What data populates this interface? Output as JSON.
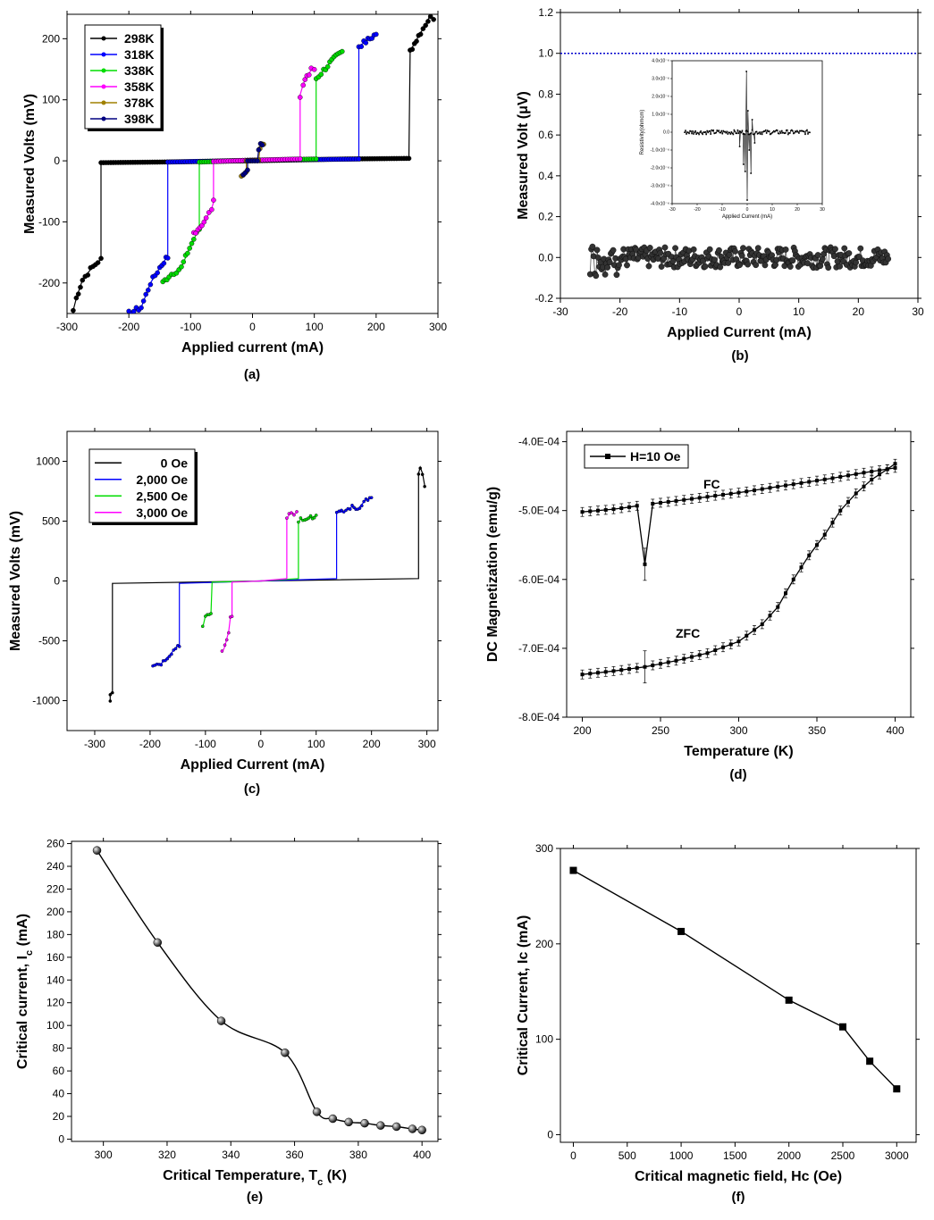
{
  "chart_data": [
    {
      "id": "a",
      "type": "line",
      "caption": "(a)",
      "xlabel": "Applied current (mA)",
      "ylabel": "Measured Volts (mV)",
      "xlim": [
        -300,
        300
      ],
      "ylim": [
        -250,
        240
      ],
      "xticks": [
        -300,
        -200,
        -100,
        0,
        100,
        200,
        300
      ],
      "yticks": [
        -200,
        -100,
        0,
        100,
        200
      ],
      "legend_position": "top-left",
      "series": [
        {
          "name": "298K",
          "color": "#000000",
          "points": [
            [
              -290,
              -245
            ],
            [
              -285,
              -225
            ],
            [
              -275,
              -195
            ],
            [
              -262,
              -178
            ],
            [
              -250,
              -165
            ],
            [
              -245,
              -162
            ],
            [
              -245,
              -3
            ],
            [
              -150,
              -2
            ],
            [
              0,
              0
            ],
            [
              150,
              3
            ],
            [
              253,
              4
            ],
            [
              255,
              180
            ],
            [
              262,
              192
            ],
            [
              272,
              210
            ],
            [
              280,
              222
            ],
            [
              288,
              240
            ],
            [
              293,
              228
            ]
          ]
        },
        {
          "name": "318K",
          "color": "#0000ff",
          "points": [
            [
              -200,
              -250
            ],
            [
              -180,
              -240
            ],
            [
              -165,
              -200
            ],
            [
              -150,
              -175
            ],
            [
              -140,
              -160
            ],
            [
              -137,
              -158
            ],
            [
              -137,
              -2
            ],
            [
              0,
              1
            ],
            [
              172,
              3
            ],
            [
              172,
              188
            ],
            [
              180,
              193
            ],
            [
              190,
              200
            ],
            [
              200,
              208
            ]
          ]
        },
        {
          "name": "338K",
          "color": "#00dd00",
          "points": [
            [
              -145,
              -200
            ],
            [
              -135,
              -188
            ],
            [
              -115,
              -175
            ],
            [
              -105,
              -150
            ],
            [
              -95,
              -128
            ],
            [
              -86,
              -112
            ],
            [
              -86,
              -2
            ],
            [
              0,
              1
            ],
            [
              103,
              3
            ],
            [
              103,
              135
            ],
            [
              115,
              148
            ],
            [
              125,
              160
            ],
            [
              135,
              170
            ],
            [
              145,
              178
            ]
          ]
        },
        {
          "name": "358K",
          "color": "#ff00ff",
          "points": [
            [
              -95,
              -118
            ],
            [
              -85,
              -108
            ],
            [
              -75,
              -95
            ],
            [
              -66,
              -78
            ],
            [
              -63,
              -68
            ],
            [
              -63,
              -1
            ],
            [
              0,
              1
            ],
            [
              77,
              3
            ],
            [
              77,
              108
            ],
            [
              82,
              125
            ],
            [
              88,
              140
            ],
            [
              95,
              148
            ],
            [
              100,
              150
            ]
          ]
        },
        {
          "name": "378K",
          "color": "#a08000",
          "points": [
            [
              -18,
              -28
            ],
            [
              -15,
              -24
            ],
            [
              -12,
              -20
            ],
            [
              -10,
              -18
            ],
            [
              -10,
              0
            ],
            [
              10,
              1
            ],
            [
              12,
              20
            ],
            [
              15,
              28
            ],
            [
              18,
              30
            ]
          ]
        },
        {
          "name": "398K",
          "color": "#000080",
          "points": [
            [
              -15,
              -25
            ],
            [
              -12,
              -20
            ],
            [
              -8,
              -15
            ],
            [
              -8,
              0
            ],
            [
              8,
              0
            ],
            [
              10,
              18
            ],
            [
              13,
              25
            ],
            [
              16,
              28
            ]
          ]
        }
      ]
    },
    {
      "id": "b",
      "type": "scatter",
      "caption": "(b)",
      "xlabel": "Applied Current (mA)",
      "ylabel": "Measured Volt (μV)",
      "xlim": [
        -30,
        30
      ],
      "ylim": [
        -0.2,
        1.2
      ],
      "xticks": [
        -30,
        -20,
        -10,
        0,
        10,
        20,
        30
      ],
      "yticks": [
        -0.2,
        0.0,
        0.2,
        0.4,
        0.6,
        0.8,
        1.0,
        1.2
      ],
      "reference_line": {
        "y": 1.0,
        "color": "#0000cc"
      },
      "series": [
        {
          "name": "",
          "color": "#333333",
          "x_range": [
            -25,
            25
          ],
          "n": 260,
          "mean": 0.0,
          "spread": 0.05
        }
      ],
      "inset": {
        "xlabel": "Applied Current (mA)",
        "ylabel": "Resistivity(ohmcm)",
        "xlim": [
          -30,
          30
        ],
        "ylim": [
          -4.0,
          4.0
        ],
        "xticks": [
          -30,
          -20,
          -10,
          0,
          10,
          20,
          30
        ],
        "yticks": [
          -4.0,
          -3.0,
          -2.0,
          -1.0,
          0.0,
          1.0,
          2.0,
          3.0,
          4.0
        ],
        "ytick_unit": "x10⁻⁶",
        "spikes": [
          [
            -3,
            -0.8
          ],
          [
            -1.5,
            -1.8
          ],
          [
            -0.8,
            -2.2
          ],
          [
            -0.3,
            3.4
          ],
          [
            0,
            -3.8
          ],
          [
            0.3,
            1.2
          ],
          [
            0.8,
            -1.0
          ],
          [
            1.5,
            -2.3
          ],
          [
            2,
            0.7
          ],
          [
            3,
            -0.6
          ]
        ]
      }
    },
    {
      "id": "c",
      "type": "line",
      "caption": "(c)",
      "xlabel": "Applied Current (mA)",
      "ylabel": "Measured Volts (mV)",
      "xlim": [
        -350,
        320
      ],
      "ylim": [
        -1250,
        1250
      ],
      "xticks": [
        -300,
        -200,
        -100,
        0,
        100,
        200,
        300
      ],
      "yticks": [
        -1000,
        -500,
        0,
        500,
        1000
      ],
      "legend_position": "top-left",
      "series": [
        {
          "name": "0 Oe",
          "color": "#000000",
          "points": [
            [
              -272,
              -1000
            ],
            [
              -272,
              -940
            ],
            [
              -268,
              -930
            ],
            [
              -268,
              -20
            ],
            [
              0,
              0
            ],
            [
              285,
              20
            ],
            [
              285,
              900
            ],
            [
              288,
              950
            ],
            [
              292,
              900
            ],
            [
              296,
              800
            ]
          ]
        },
        {
          "name": "2,000 Oe",
          "color": "#0000ff",
          "points": [
            [
              -195,
              -700
            ],
            [
              -180,
              -690
            ],
            [
              -165,
              -620
            ],
            [
              -150,
              -540
            ],
            [
              -147,
              -535
            ],
            [
              -147,
              -20
            ],
            [
              0,
              0
            ],
            [
              137,
              20
            ],
            [
              137,
              570
            ],
            [
              150,
              580
            ],
            [
              165,
              620
            ],
            [
              175,
              600
            ],
            [
              190,
              680
            ],
            [
              200,
              690
            ]
          ]
        },
        {
          "name": "2,500 Oe",
          "color": "#00dd00",
          "points": [
            [
              -105,
              -390
            ],
            [
              -100,
              -290
            ],
            [
              -90,
              -280
            ],
            [
              -88,
              -10
            ],
            [
              0,
              0
            ],
            [
              68,
              20
            ],
            [
              68,
              480
            ],
            [
              72,
              520
            ],
            [
              80,
              500
            ],
            [
              90,
              530
            ],
            [
              100,
              545
            ]
          ]
        },
        {
          "name": "3,000 Oe",
          "color": "#ff00ff",
          "points": [
            [
              -70,
              -600
            ],
            [
              -65,
              -550
            ],
            [
              -58,
              -420
            ],
            [
              -55,
              -310
            ],
            [
              -52,
              -290
            ],
            [
              -52,
              -10
            ],
            [
              0,
              0
            ],
            [
              47,
              20
            ],
            [
              47,
              520
            ],
            [
              55,
              580
            ],
            [
              60,
              560
            ],
            [
              65,
              570
            ]
          ]
        }
      ]
    },
    {
      "id": "d",
      "type": "line",
      "caption": "(d)",
      "xlabel": "Temperature (K)",
      "ylabel": "DC Magnetization (emu/g)",
      "xlim": [
        190,
        410
      ],
      "ylim": [
        -0.0008,
        -0.000385
      ],
      "xticks": [
        200,
        250,
        300,
        350,
        400
      ],
      "yticks": [
        -0.0008,
        -0.0007,
        -0.0006,
        -0.0005,
        -0.0004
      ],
      "ytick_labels": [
        "-8.0E-04",
        "-7.0E-04",
        "-6.0E-04",
        "-5.0E-04",
        "-4.0E-04"
      ],
      "legend": "H=10 Oe",
      "annotations": [
        "FC",
        "ZFC"
      ],
      "series": [
        {
          "name": "FC",
          "color": "#000000",
          "points": [
            [
              200,
              -0.000502
            ],
            [
              210,
              -0.0005
            ],
            [
              220,
              -0.000498
            ],
            [
              230,
              -0.000495
            ],
            [
              235,
              -0.000493
            ],
            [
              240,
              -0.000578
            ],
            [
              245,
              -0.00049
            ],
            [
              260,
              -0.000486
            ],
            [
              280,
              -0.00048
            ],
            [
              300,
              -0.000474
            ],
            [
              320,
              -0.000467
            ],
            [
              340,
              -0.00046
            ],
            [
              360,
              -0.000453
            ],
            [
              380,
              -0.000445
            ],
            [
              400,
              -0.000438
            ]
          ]
        },
        {
          "name": "ZFC",
          "color": "#000000",
          "points": [
            [
              200,
              -0.000738
            ],
            [
              220,
              -0.000733
            ],
            [
              240,
              -0.000727
            ],
            [
              260,
              -0.000718
            ],
            [
              280,
              -0.000707
            ],
            [
              300,
              -0.00069
            ],
            [
              315,
              -0.000665
            ],
            [
              325,
              -0.00064
            ],
            [
              335,
              -0.0006
            ],
            [
              345,
              -0.000565
            ],
            [
              355,
              -0.000535
            ],
            [
              365,
              -0.0005
            ],
            [
              375,
              -0.000475
            ],
            [
              385,
              -0.000455
            ],
            [
              395,
              -0.00044
            ],
            [
              400,
              -0.000432
            ]
          ]
        }
      ]
    },
    {
      "id": "e",
      "type": "line",
      "caption": "(e)",
      "xlabel": "Critical Temperature, T_c (K)",
      "ylabel": "Critical current, I_c (mA)",
      "xlim": [
        290,
        405
      ],
      "ylim": [
        -2,
        262
      ],
      "xticks": [
        300,
        320,
        340,
        360,
        380,
        400
      ],
      "yticks": [
        0,
        20,
        40,
        60,
        80,
        100,
        120,
        140,
        160,
        180,
        200,
        220,
        240,
        260
      ],
      "series": [
        {
          "name": "",
          "color": "#000000",
          "points": [
            [
              298,
              254
            ],
            [
              317,
              173
            ],
            [
              337,
              104
            ],
            [
              357,
              76
            ],
            [
              367,
              24
            ],
            [
              372,
              18
            ],
            [
              377,
              15
            ],
            [
              382,
              14
            ],
            [
              387,
              12
            ],
            [
              392,
              11
            ],
            [
              397,
              9
            ],
            [
              400,
              8
            ]
          ]
        }
      ]
    },
    {
      "id": "f",
      "type": "line",
      "caption": "(f)",
      "xlabel": "Critical magnetic field, Hc (Oe)",
      "ylabel": "Critical Current, Ic (mA)",
      "xlim": [
        -120,
        3180
      ],
      "ylim": [
        -8,
        300
      ],
      "xticks": [
        0,
        500,
        1000,
        1500,
        2000,
        2500,
        3000
      ],
      "yticks": [
        0,
        100,
        200,
        300
      ],
      "series": [
        {
          "name": "",
          "color": "#000000",
          "points": [
            [
              0,
              277
            ],
            [
              1000,
              213
            ],
            [
              2000,
              141
            ],
            [
              2500,
              113
            ],
            [
              2750,
              77
            ],
            [
              3000,
              48
            ]
          ]
        }
      ]
    }
  ]
}
